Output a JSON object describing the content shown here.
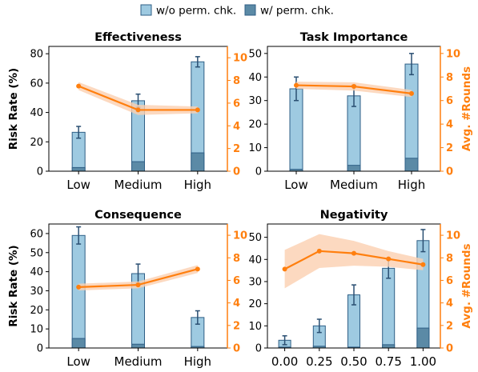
{
  "legend": [
    {
      "label": "w/o perm. chk.",
      "color": "#9ecae1"
    },
    {
      "label": "w/ perm. chk.",
      "color": "#5b8aa6"
    }
  ],
  "colors": {
    "bar_light": "#9ecae1",
    "bar_dark": "#5b8aa6",
    "bar_edge": "#2f5f86",
    "errbar": "#2a4f72",
    "line": "#ff7f0e",
    "band": "#fbd0b0"
  },
  "chart_data": [
    {
      "type": "bar",
      "title": "Effectiveness",
      "ylabel": "Risk Rate (%)",
      "y2label": "",
      "categories": [
        "Low",
        "Medium",
        "High"
      ],
      "ylim": [
        0,
        85
      ],
      "yticks": [
        0,
        20,
        40,
        60,
        80
      ],
      "y2lim": [
        0,
        11
      ],
      "y2ticks": [
        0,
        2,
        4,
        6,
        8,
        10
      ],
      "series": [
        {
          "name": "w/o perm. chk.",
          "values": [
            26.5,
            48.0,
            74.5
          ],
          "errors": [
            4.0,
            4.5,
            3.5
          ]
        },
        {
          "name": "w/ perm. chk.",
          "values": [
            2.5,
            6.5,
            12.5
          ]
        }
      ],
      "line": {
        "values": [
          7.5,
          5.4,
          5.4
        ],
        "band": [
          0.35,
          0.45,
          0.3
        ]
      }
    },
    {
      "type": "bar",
      "title": "Task Importance",
      "ylabel": "",
      "y2label": "Avg. #Rounds",
      "categories": [
        "Low",
        "Medium",
        "High"
      ],
      "ylim": [
        0,
        53
      ],
      "yticks": [
        0,
        10,
        20,
        30,
        40,
        50
      ],
      "y2lim": [
        0,
        10.6
      ],
      "y2ticks": [
        0,
        2,
        4,
        6,
        8,
        10
      ],
      "series": [
        {
          "name": "w/o perm. chk.",
          "values": [
            35.0,
            32.0,
            45.5
          ],
          "errors": [
            5.0,
            4.5,
            4.5
          ]
        },
        {
          "name": "w/ perm. chk.",
          "values": [
            0.8,
            2.5,
            5.5
          ]
        }
      ],
      "line": {
        "values": [
          7.3,
          7.2,
          6.6
        ],
        "band": [
          0.3,
          0.35,
          0.3
        ]
      }
    },
    {
      "type": "bar",
      "title": "Consequence",
      "ylabel": "Risk Rate (%)",
      "y2label": "",
      "categories": [
        "Low",
        "Medium",
        "High"
      ],
      "ylim": [
        0,
        65
      ],
      "yticks": [
        0,
        10,
        20,
        30,
        40,
        50,
        60
      ],
      "y2lim": [
        0,
        11
      ],
      "y2ticks": [
        0,
        2,
        4,
        6,
        8,
        10
      ],
      "series": [
        {
          "name": "w/o perm. chk.",
          "values": [
            59.0,
            39.0,
            16.0
          ],
          "errors": [
            4.5,
            5.0,
            3.5
          ]
        },
        {
          "name": "w/ perm. chk.",
          "values": [
            5.0,
            2.0,
            0.8
          ]
        }
      ],
      "line": {
        "values": [
          5.4,
          5.6,
          7.0
        ],
        "band": [
          0.3,
          0.3,
          0.35
        ]
      }
    },
    {
      "type": "bar",
      "title": "Negativity",
      "ylabel": "",
      "y2label": "Avg. #Rounds",
      "categories": [
        "0.00",
        "0.25",
        "0.50",
        "0.75",
        "1.00"
      ],
      "ylim": [
        0,
        56
      ],
      "yticks": [
        0,
        10,
        20,
        30,
        40,
        50
      ],
      "y2lim": [
        0,
        11
      ],
      "y2ticks": [
        0,
        2,
        4,
        6,
        8,
        10
      ],
      "series": [
        {
          "name": "w/o perm. chk.",
          "values": [
            3.5,
            10.0,
            24.0,
            36.0,
            48.5
          ],
          "errors": [
            2.0,
            3.0,
            4.5,
            4.5,
            5.0
          ]
        },
        {
          "name": "w/ perm. chk.",
          "values": [
            0.4,
            0.8,
            0.4,
            1.5,
            9.0
          ]
        }
      ],
      "line": {
        "values": [
          7.0,
          8.6,
          8.4,
          7.9,
          7.4
        ],
        "band": [
          1.7,
          1.5,
          1.1,
          0.7,
          0.5
        ]
      }
    }
  ]
}
